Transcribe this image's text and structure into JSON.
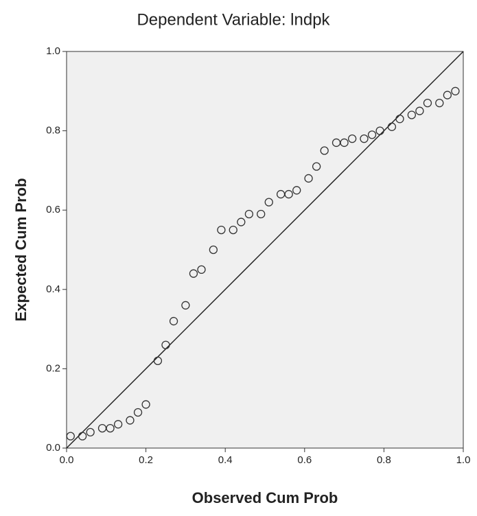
{
  "chart_data": {
    "type": "scatter",
    "title": "Dependent Variable: lndpk",
    "x_label": "Observed Cum Prob",
    "y_label": "Expected Cum Prob",
    "x": [
      0.01,
      0.04,
      0.06,
      0.09,
      0.11,
      0.13,
      0.16,
      0.18,
      0.2,
      0.23,
      0.25,
      0.27,
      0.3,
      0.32,
      0.34,
      0.37,
      0.39,
      0.42,
      0.44,
      0.46,
      0.49,
      0.51,
      0.54,
      0.56,
      0.58,
      0.61,
      0.63,
      0.65,
      0.68,
      0.7,
      0.72,
      0.75,
      0.77,
      0.79,
      0.82,
      0.84,
      0.87,
      0.89,
      0.91,
      0.94,
      0.96,
      0.98
    ],
    "series": [
      {
        "color": "#333333",
        "values": [
          0.03,
          0.03,
          0.04,
          0.05,
          0.05,
          0.06,
          0.07,
          0.09,
          0.11,
          0.22,
          0.26,
          0.32,
          0.36,
          0.44,
          0.45,
          0.5,
          0.55,
          0.55,
          0.57,
          0.59,
          0.59,
          0.62,
          0.64,
          0.64,
          0.65,
          0.68,
          0.71,
          0.75,
          0.77,
          0.77,
          0.78,
          0.78,
          0.79,
          0.8,
          0.81,
          0.83,
          0.84,
          0.85,
          0.87,
          0.87,
          0.89,
          0.9
        ]
      }
    ],
    "xlim": [
      0,
      1
    ],
    "ylim": [
      0,
      1
    ],
    "xticks": [
      {
        "value": 0,
        "label": "0.0"
      },
      0.2,
      0.4,
      0.6,
      0.8,
      {
        "value": 1,
        "label": "1.0"
      }
    ],
    "yticks": [
      {
        "value": 0,
        "label": "0.0"
      },
      0.2,
      0.4,
      0.6,
      0.8,
      {
        "value": 1,
        "label": "1.0"
      }
    ],
    "reference_line_color": "#222222",
    "plot_background": "#f0f0f0"
  }
}
